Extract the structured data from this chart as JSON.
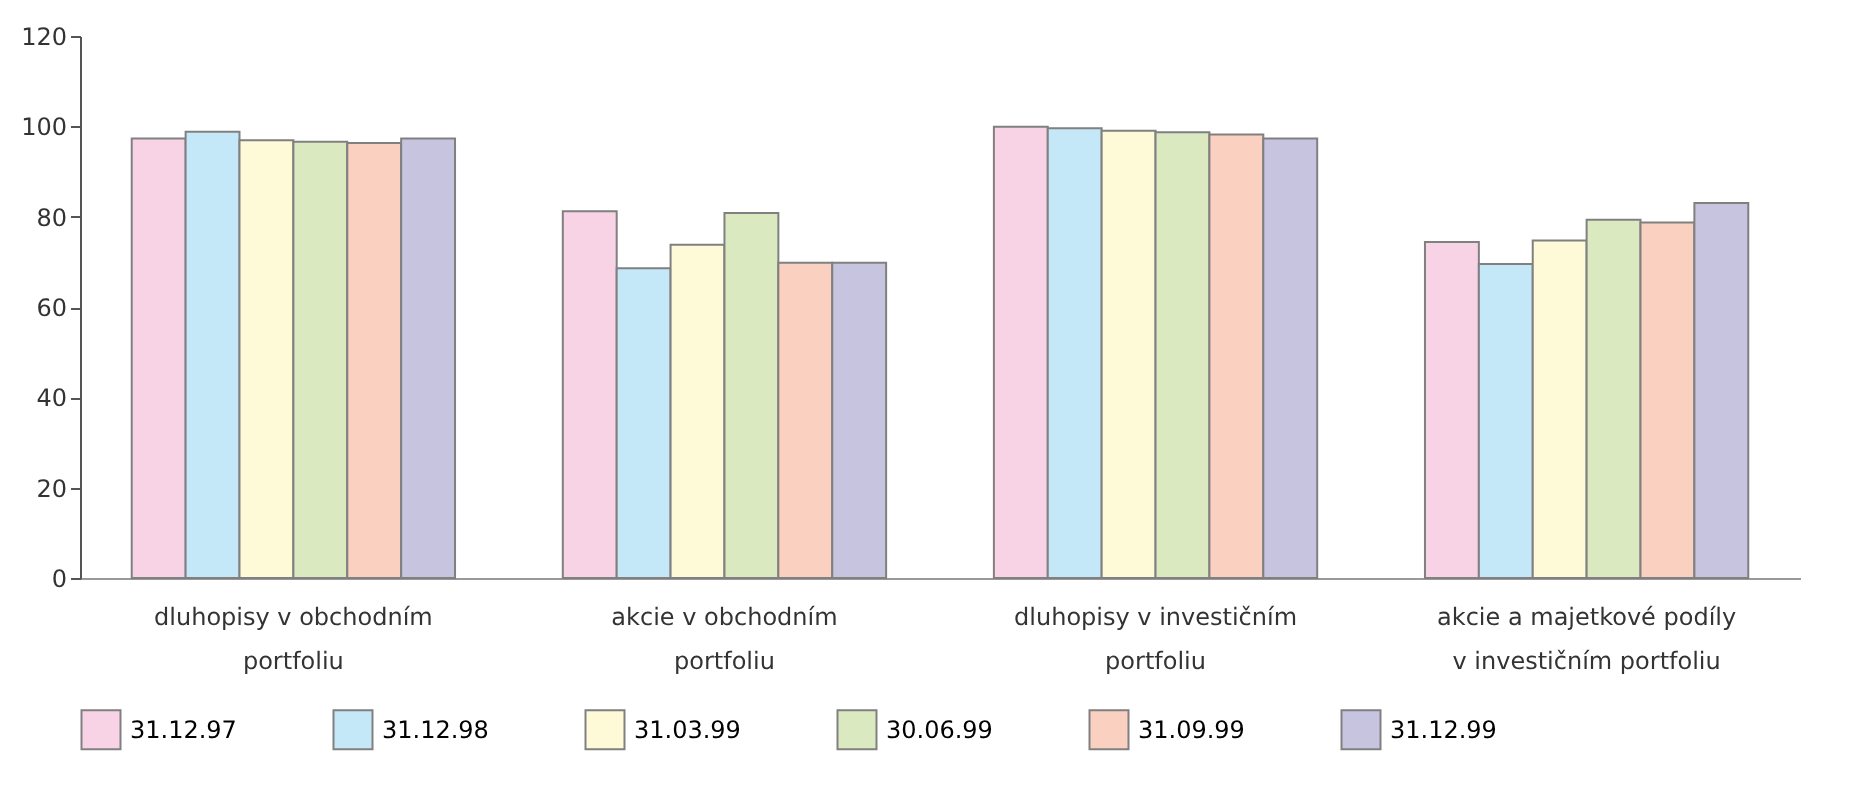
{
  "chart_data": {
    "type": "bar",
    "categories": [
      "dluhopisy v obchodním portfoliu",
      "akcie v obchodním portfoliu",
      "dluhopisy v investičním portfoliu",
      "akcie a majetkové podíly v investičním portfoliu"
    ],
    "series": [
      {
        "name": "31.12.97",
        "color": "#f8d3e6",
        "values": [
          97.3,
          81.2,
          99.9,
          74.4
        ]
      },
      {
        "name": "31.12.98",
        "color": "#c5e8f8",
        "values": [
          98.8,
          68.6,
          99.6,
          69.5
        ]
      },
      {
        "name": "31.03.99",
        "color": "#fef9d6",
        "values": [
          96.9,
          73.8,
          99.0,
          74.7
        ]
      },
      {
        "name": "30.06.99",
        "color": "#dbe9c1",
        "values": [
          96.6,
          80.8,
          98.7,
          79.3
        ]
      },
      {
        "name": "31.09.99",
        "color": "#fad0c0",
        "values": [
          96.3,
          69.8,
          98.2,
          78.7
        ]
      },
      {
        "name": "31.12.99",
        "color": "#c7c4e0",
        "values": [
          97.3,
          69.8,
          97.3,
          83.0
        ]
      }
    ],
    "ylim": [
      0,
      120
    ],
    "yticks": [
      0,
      20,
      40,
      60,
      80,
      100,
      120
    ],
    "grid": false,
    "legend": "bottom"
  }
}
